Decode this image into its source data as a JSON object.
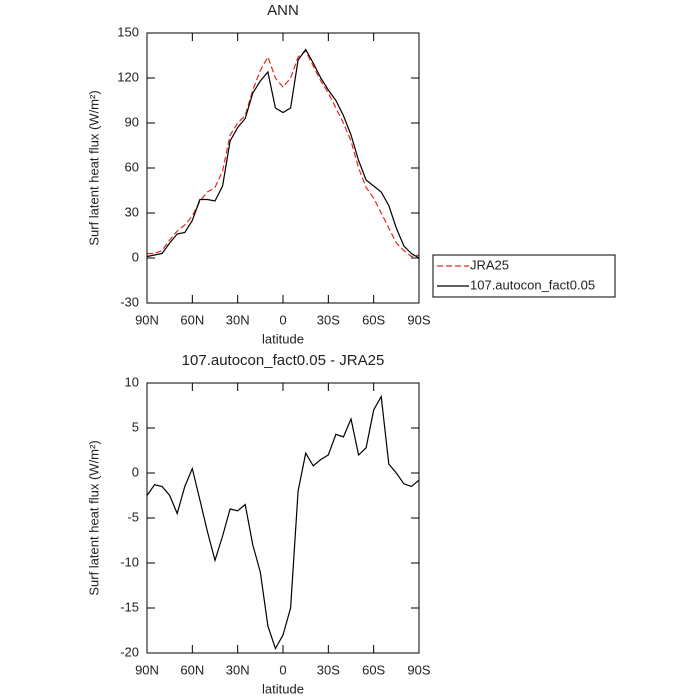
{
  "chart_data": [
    {
      "type": "line",
      "title": "ANN",
      "x_label": "latitude",
      "y_label": "Surf latent heat flux (W/m²)",
      "x": [
        90,
        85,
        80,
        75,
        70,
        65,
        60,
        55,
        50,
        45,
        40,
        35,
        30,
        25,
        20,
        15,
        10,
        5,
        0,
        -5,
        -10,
        -15,
        -20,
        -25,
        -30,
        -35,
        -40,
        -45,
        -50,
        -55,
        -60,
        -65,
        -70,
        -75,
        -80,
        -85,
        -90
      ],
      "series": [
        {
          "name": "JRA25",
          "color": "#e8271e",
          "dash": true,
          "values": [
            3,
            3,
            5,
            12,
            18,
            22,
            28,
            38,
            44,
            47,
            58,
            82,
            90,
            95,
            112,
            125,
            134,
            120,
            114,
            120,
            134,
            138,
            128,
            118,
            110,
            100,
            90,
            78,
            60,
            47,
            40,
            30,
            20,
            10,
            5,
            1,
            2
          ]
        },
        {
          "name": "107.autocon_fact0.05",
          "color": "#000000",
          "dash": false,
          "values": [
            1,
            2,
            3,
            10,
            16,
            17,
            25,
            39,
            39,
            38,
            48,
            78,
            87,
            93,
            110,
            118,
            124,
            100,
            97,
            100,
            132,
            139,
            130,
            120,
            112,
            105,
            95,
            82,
            65,
            52,
            48,
            44,
            35,
            20,
            8,
            3,
            0
          ]
        }
      ],
      "xlim": [
        90,
        -90
      ],
      "xticks": [
        {
          "value": 90,
          "label": "90N"
        },
        {
          "value": 60,
          "label": "60N"
        },
        {
          "value": 30,
          "label": "30N"
        },
        0,
        {
          "value": -30,
          "label": "30S"
        },
        {
          "value": -60,
          "label": "60S"
        },
        {
          "value": -90,
          "label": "90S"
        }
      ],
      "ylim": [
        -30,
        150
      ],
      "yticks": [
        -30,
        0,
        30,
        60,
        90,
        120,
        150
      ],
      "legend": "outside-right"
    },
    {
      "type": "line",
      "title": "107.autocon_fact0.05 - JRA25",
      "x_label": "latitude",
      "y_label": "Surf latent heat flux (W/m²)",
      "x": [
        90,
        85,
        80,
        75,
        70,
        65,
        60,
        55,
        50,
        45,
        40,
        35,
        30,
        25,
        20,
        15,
        10,
        5,
        0,
        -5,
        -10,
        -15,
        -20,
        -25,
        -30,
        -35,
        -40,
        -45,
        -50,
        -55,
        -60,
        -65,
        -70,
        -75,
        -80,
        -85,
        -90
      ],
      "values": [
        -2.5,
        -1.3,
        -1.5,
        -2.5,
        -4.5,
        -1.5,
        0.5,
        -3,
        -6.5,
        -9.7,
        -7,
        -4,
        -4.2,
        -3.5,
        -8,
        -11,
        -17,
        -19.5,
        -18,
        -15,
        -2,
        2.2,
        0.8,
        1.5,
        2,
        4.3,
        4,
        6,
        2,
        2.8,
        7,
        8.5,
        1,
        0,
        -1.2,
        -1.5,
        -0.8
      ],
      "color": "#000000",
      "xlim": [
        90,
        -90
      ],
      "xticks": [
        {
          "value": 90,
          "label": "90N"
        },
        {
          "value": 60,
          "label": "60N"
        },
        {
          "value": 30,
          "label": "30N"
        },
        0,
        {
          "value": -30,
          "label": "30S"
        },
        {
          "value": -60,
          "label": "60S"
        },
        {
          "value": -90,
          "label": "90S"
        }
      ],
      "ylim": [
        -20,
        10
      ],
      "yticks": [
        -20,
        -15,
        -10,
        -5,
        0,
        5,
        10
      ]
    }
  ]
}
